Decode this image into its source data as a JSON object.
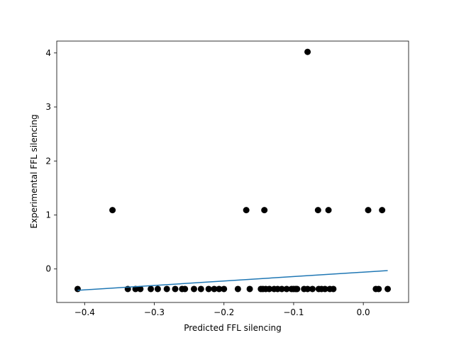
{
  "chart_data": {
    "type": "scatter",
    "title": "",
    "xlabel": "Predicted FFL silencing",
    "ylabel": "Experimental FFL silencing",
    "xlim": [
      -0.44,
      0.065
    ],
    "ylim": [
      -0.62,
      4.22
    ],
    "xticks": [
      {
        "value": -0.4,
        "label": "−0.4"
      },
      {
        "value": -0.3,
        "label": "−0.3"
      },
      {
        "value": -0.2,
        "label": "−0.2"
      },
      {
        "value": -0.1,
        "label": "−0.1"
      },
      {
        "value": 0.0,
        "label": "0.0"
      }
    ],
    "yticks": [
      {
        "value": 0,
        "label": "0"
      },
      {
        "value": 1,
        "label": "1"
      },
      {
        "value": 2,
        "label": "2"
      },
      {
        "value": 3,
        "label": "3"
      },
      {
        "value": 4,
        "label": "4"
      }
    ],
    "grid": false,
    "legend": "none",
    "series": [
      {
        "kind": "points",
        "color": "#000000",
        "points": [
          [
            -0.41,
            -0.37
          ],
          [
            -0.36,
            1.09
          ],
          [
            -0.338,
            -0.37
          ],
          [
            -0.327,
            -0.37
          ],
          [
            -0.32,
            -0.37
          ],
          [
            -0.305,
            -0.37
          ],
          [
            -0.295,
            -0.37
          ],
          [
            -0.282,
            -0.37
          ],
          [
            -0.27,
            -0.37
          ],
          [
            -0.26,
            -0.37
          ],
          [
            -0.256,
            -0.37
          ],
          [
            -0.243,
            -0.37
          ],
          [
            -0.233,
            -0.37
          ],
          [
            -0.222,
            -0.37
          ],
          [
            -0.214,
            -0.37
          ],
          [
            -0.207,
            -0.37
          ],
          [
            -0.2,
            -0.37
          ],
          [
            -0.18,
            -0.37
          ],
          [
            -0.168,
            1.09
          ],
          [
            -0.163,
            -0.37
          ],
          [
            -0.147,
            -0.37
          ],
          [
            -0.144,
            -0.37
          ],
          [
            -0.142,
            1.09
          ],
          [
            -0.14,
            -0.37
          ],
          [
            -0.135,
            -0.37
          ],
          [
            -0.128,
            -0.37
          ],
          [
            -0.123,
            -0.37
          ],
          [
            -0.117,
            -0.37
          ],
          [
            -0.11,
            -0.37
          ],
          [
            -0.103,
            -0.37
          ],
          [
            -0.1,
            -0.37
          ],
          [
            -0.097,
            -0.37
          ],
          [
            -0.095,
            -0.37
          ],
          [
            -0.085,
            -0.37
          ],
          [
            -0.08,
            -0.37
          ],
          [
            -0.08,
            4.02
          ],
          [
            -0.073,
            -0.37
          ],
          [
            -0.065,
            1.09
          ],
          [
            -0.064,
            -0.37
          ],
          [
            -0.06,
            -0.37
          ],
          [
            -0.055,
            -0.37
          ],
          [
            -0.05,
            1.09
          ],
          [
            -0.048,
            -0.37
          ],
          [
            -0.043,
            -0.37
          ],
          [
            0.007,
            1.09
          ],
          [
            0.018,
            -0.37
          ],
          [
            0.022,
            -0.37
          ],
          [
            0.027,
            1.09
          ],
          [
            0.035,
            -0.37
          ]
        ]
      },
      {
        "kind": "line",
        "color": "#1f77b4",
        "points": [
          [
            -0.41,
            -0.395
          ],
          [
            0.035,
            -0.03
          ]
        ]
      }
    ]
  }
}
